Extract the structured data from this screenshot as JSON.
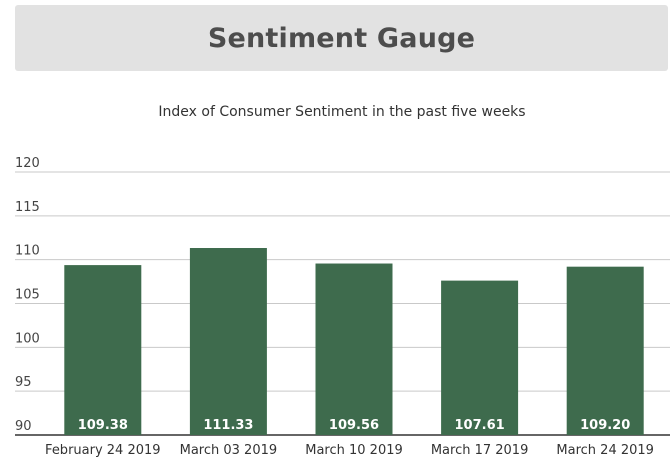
{
  "header": {
    "title": "Sentiment Gauge"
  },
  "chart_data": {
    "type": "bar",
    "title": "Sentiment Gauge",
    "subtitle": "Index of Consumer Sentiment in the past five weeks",
    "xlabel": "",
    "ylabel": "",
    "categories": [
      "February 24 2019",
      "March 03 2019",
      "March 10 2019",
      "March 17 2019",
      "March 24 2019"
    ],
    "values": [
      109.38,
      111.33,
      109.56,
      107.61,
      109.2
    ],
    "value_labels": [
      "109.38",
      "111.33",
      "109.56",
      "107.61",
      "109.20"
    ],
    "ylim": [
      90,
      120
    ],
    "yticks": [
      90,
      95,
      100,
      105,
      110,
      115,
      120
    ],
    "grid": true,
    "legend": "none",
    "colors": {
      "bar": "#3e6b4d",
      "grid": "#c9c9c9",
      "axis": "#333333"
    }
  }
}
